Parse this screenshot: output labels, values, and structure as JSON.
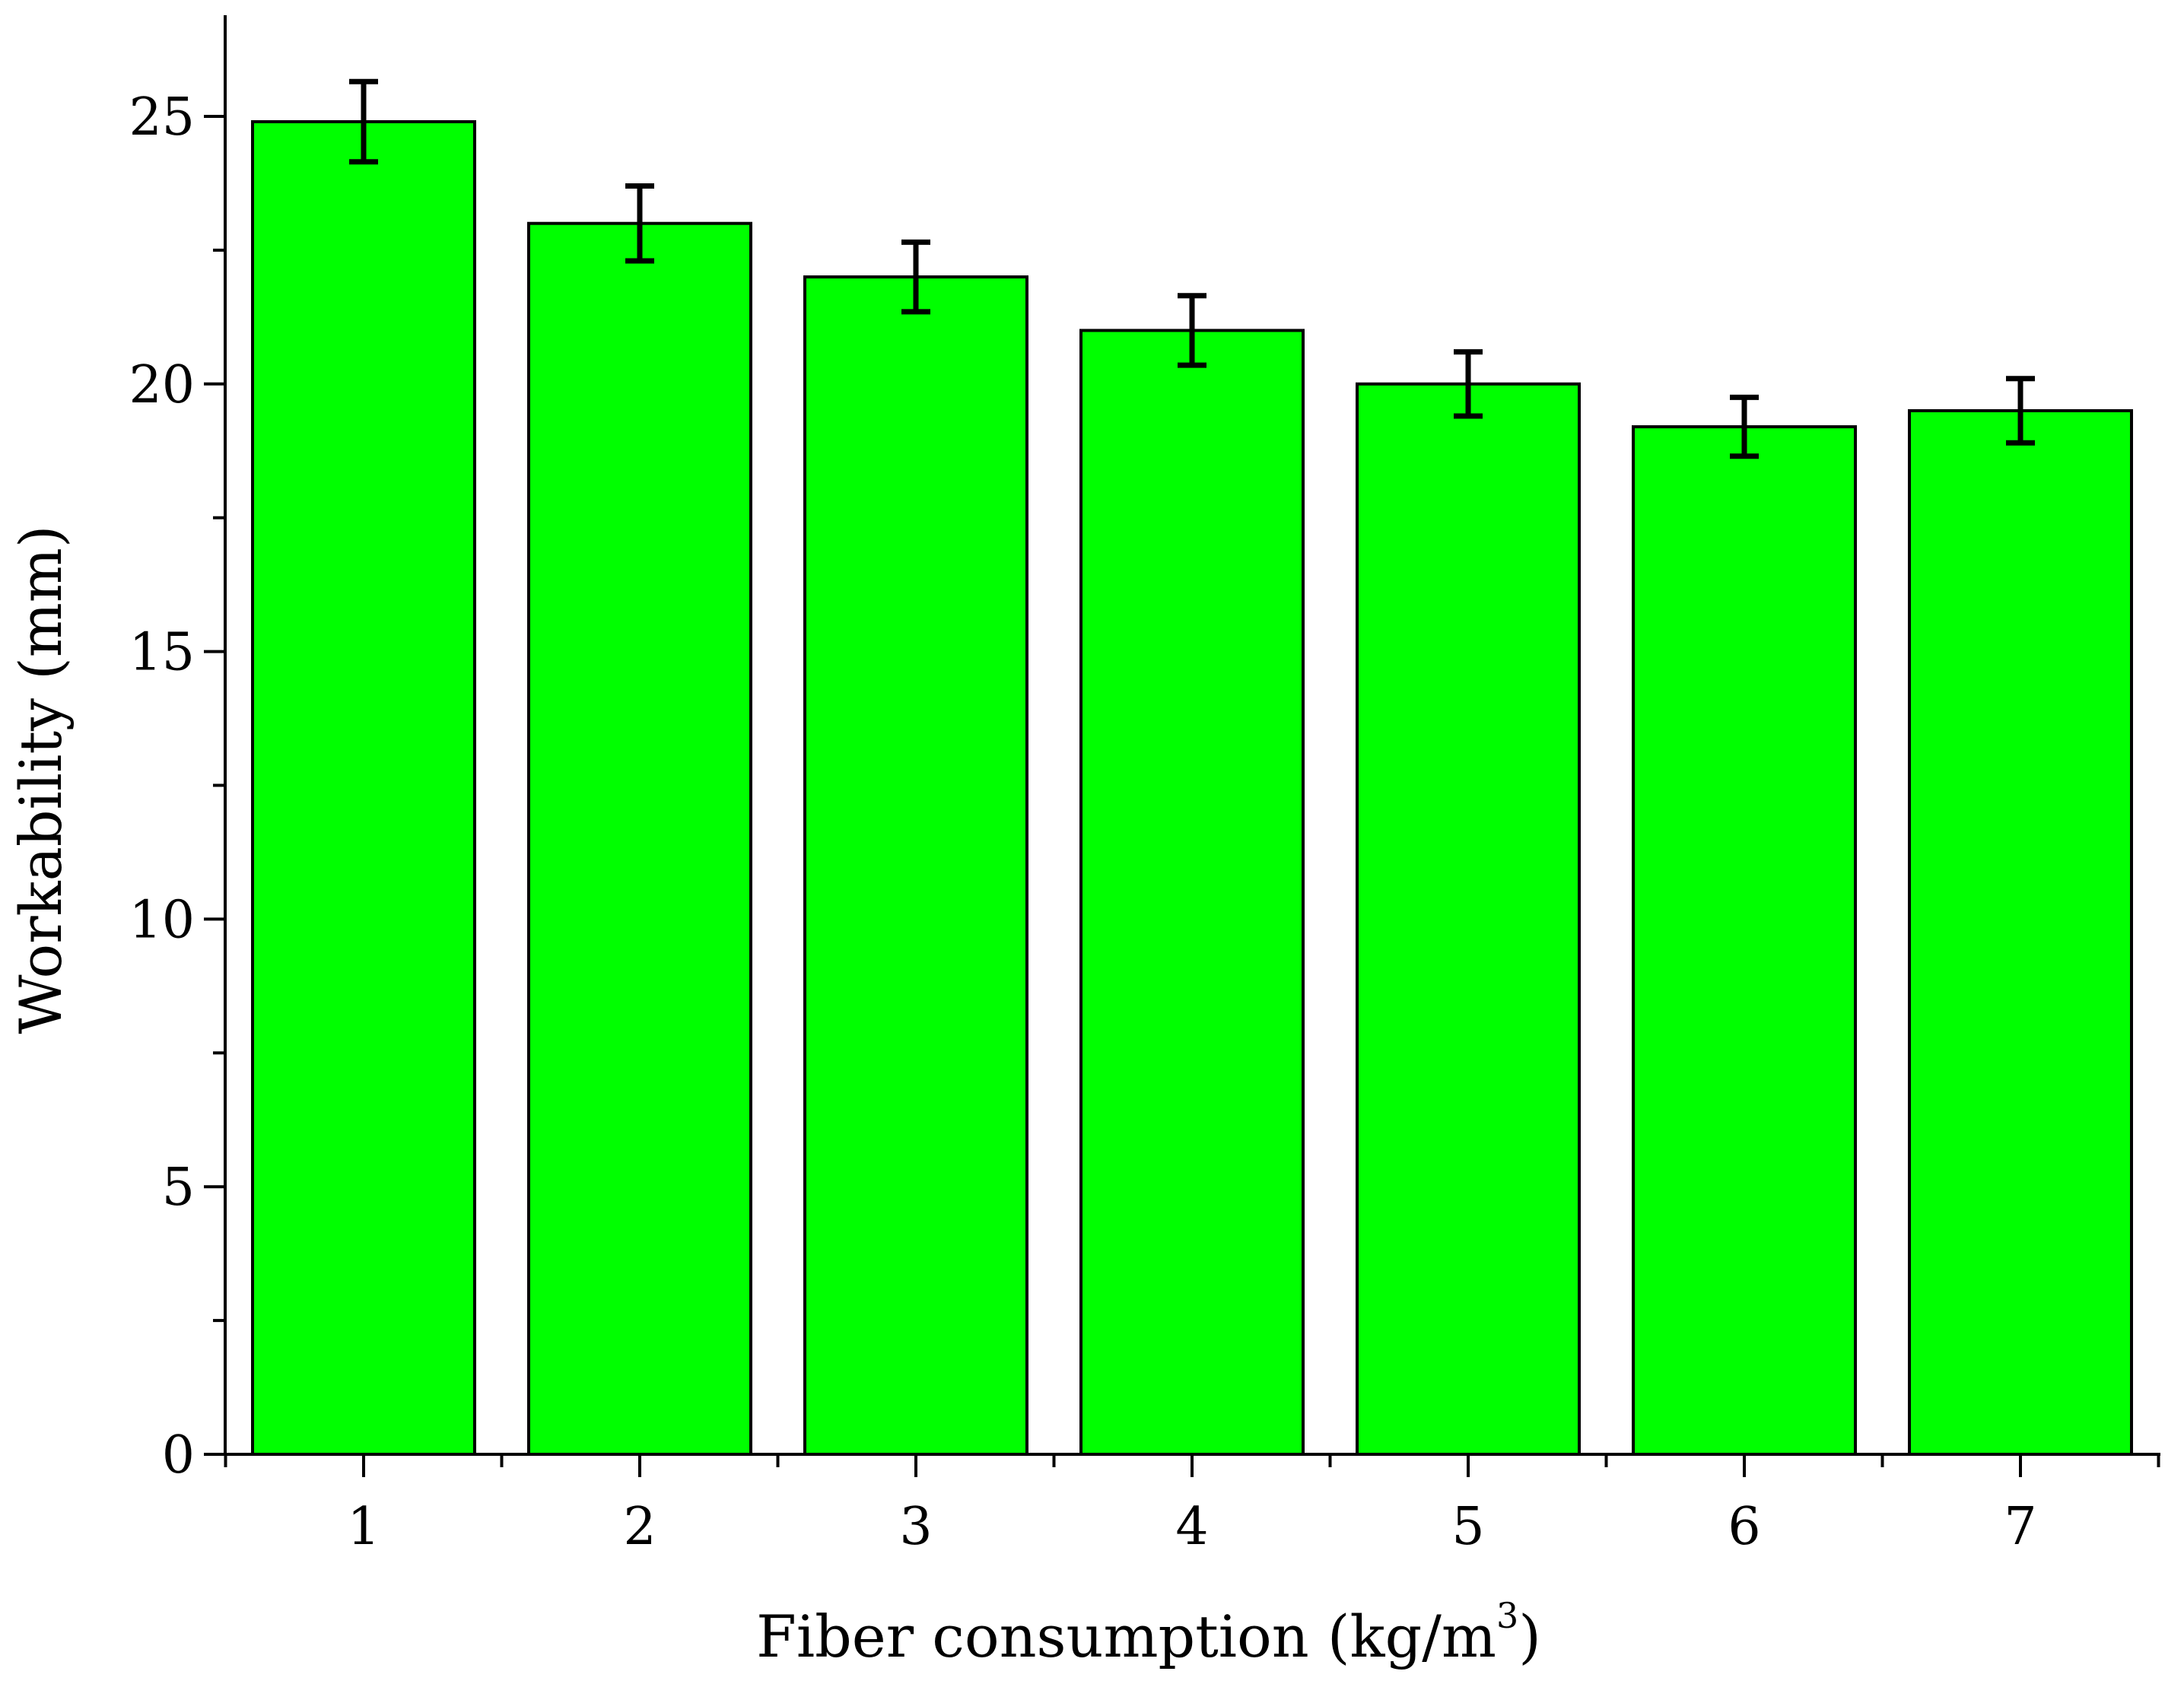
{
  "chart_data": {
    "type": "bar",
    "title": "",
    "xlabel": "Fiber consumption (kg/m",
    "xlabel_superscript": "3",
    "xlabel_suffix": ")",
    "ylabel": "Workability (mm)",
    "categories": [
      "1",
      "2",
      "3",
      "4",
      "5",
      "6",
      "7"
    ],
    "values": [
      24.9,
      23.0,
      22.0,
      21.0,
      20.0,
      19.2,
      19.5
    ],
    "errors": [
      0.75,
      0.7,
      0.65,
      0.65,
      0.6,
      0.55,
      0.6
    ],
    "ylim": [
      0,
      27
    ],
    "yticks": [
      0,
      5,
      10,
      15,
      20,
      25
    ],
    "ytick_labels": [
      "0",
      "5",
      "10",
      "15",
      "20",
      "25"
    ],
    "bar_color": "#00ff00",
    "grid": false,
    "legend": "none"
  }
}
